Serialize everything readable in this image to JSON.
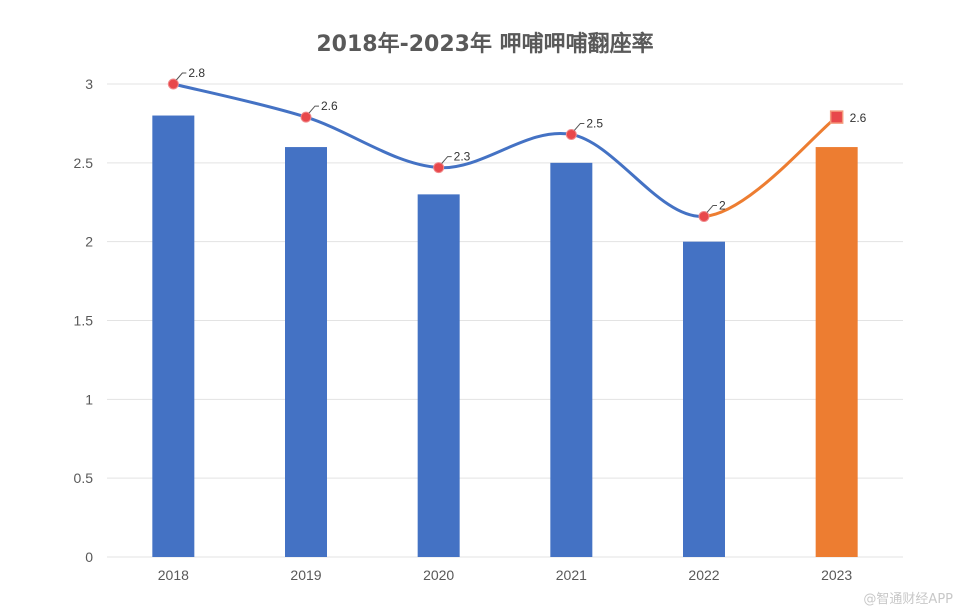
{
  "chart_data": {
    "type": "bar",
    "title": "2018年-2023年 呷哺呷哺翻座率",
    "categories": [
      "2018",
      "2019",
      "2020",
      "2021",
      "2022",
      "2023"
    ],
    "values": [
      2.8,
      2.6,
      2.3,
      2.5,
      2.0,
      2.6
    ],
    "bar_labels": [
      "2.8",
      "2.6",
      "2.3",
      "2.5",
      "2",
      "2.6"
    ],
    "line_points": [
      3.0,
      2.79,
      2.47,
      2.68,
      2.16,
      2.79
    ],
    "y_ticks": [
      "0",
      "0.5",
      "1",
      "1.5",
      "2",
      "2.5",
      "3"
    ],
    "ylim": [
      0,
      3
    ],
    "grid": true,
    "colors": {
      "bar": "#4472C4",
      "bar_highlight": "#ED7D31",
      "line": "#4472C4",
      "line_highlight": "#ED7D31",
      "marker": "#E8484B",
      "grid": "#E3E3E3",
      "title": "#595959"
    },
    "highlight_index": 5
  },
  "watermark": {
    "text": "@智通财经APP"
  }
}
